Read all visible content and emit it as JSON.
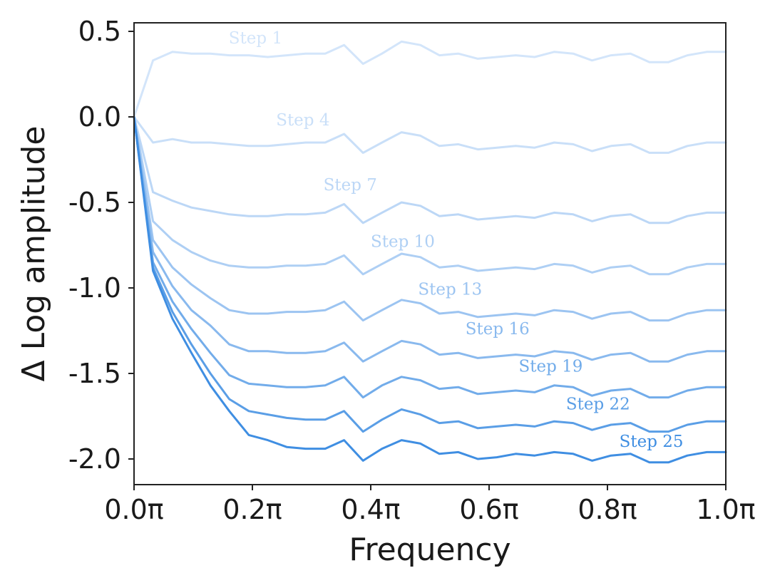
{
  "chart_data": {
    "type": "line",
    "title": "",
    "xlabel": "Frequency",
    "ylabel": "Δ Log amplitude",
    "xlim": [
      0.0,
      1.0
    ],
    "ylim": [
      -2.15,
      0.55
    ],
    "xticks": [
      0.0,
      0.2,
      0.4,
      0.6,
      0.8,
      1.0
    ],
    "xtick_labels": [
      "0.0π",
      "0.2π",
      "0.4π",
      "0.6π",
      "0.8π",
      "1.0π"
    ],
    "yticks": [
      0.5,
      0.0,
      -0.5,
      -1.0,
      -1.5,
      -2.0
    ],
    "ytick_labels": [
      "0.5",
      "0.0",
      "-0.5",
      "-1.0",
      "-1.5",
      "-2.0"
    ],
    "grid": false,
    "x": [
      0.0,
      0.032,
      0.065,
      0.097,
      0.129,
      0.161,
      0.194,
      0.226,
      0.258,
      0.29,
      0.323,
      0.355,
      0.387,
      0.419,
      0.452,
      0.484,
      0.516,
      0.548,
      0.581,
      0.613,
      0.645,
      0.677,
      0.71,
      0.742,
      0.774,
      0.806,
      0.839,
      0.871,
      0.903,
      0.935,
      0.968,
      1.0
    ],
    "series": [
      {
        "name": "Step 1",
        "color": "#d3e5fa",
        "label_pos": [
          0.16,
          0.43
        ],
        "values": [
          0.0,
          0.33,
          0.38,
          0.37,
          0.37,
          0.36,
          0.36,
          0.35,
          0.36,
          0.37,
          0.37,
          0.42,
          0.31,
          0.37,
          0.44,
          0.42,
          0.36,
          0.37,
          0.34,
          0.35,
          0.36,
          0.35,
          0.38,
          0.37,
          0.33,
          0.36,
          0.37,
          0.32,
          0.32,
          0.36,
          0.38,
          0.38
        ]
      },
      {
        "name": "Step 4",
        "color": "#c9dff8",
        "label_pos": [
          0.24,
          -0.05
        ],
        "values": [
          0.0,
          -0.15,
          -0.13,
          -0.15,
          -0.15,
          -0.16,
          -0.17,
          -0.17,
          -0.16,
          -0.15,
          -0.15,
          -0.1,
          -0.21,
          -0.15,
          -0.09,
          -0.11,
          -0.17,
          -0.16,
          -0.19,
          -0.18,
          -0.17,
          -0.18,
          -0.15,
          -0.16,
          -0.2,
          -0.17,
          -0.16,
          -0.21,
          -0.21,
          -0.17,
          -0.15,
          -0.15
        ]
      },
      {
        "name": "Step 7",
        "color": "#bcd7f6",
        "label_pos": [
          0.32,
          -0.43
        ],
        "values": [
          0.0,
          -0.44,
          -0.49,
          -0.53,
          -0.55,
          -0.57,
          -0.58,
          -0.58,
          -0.57,
          -0.57,
          -0.56,
          -0.51,
          -0.62,
          -0.56,
          -0.5,
          -0.52,
          -0.58,
          -0.57,
          -0.6,
          -0.59,
          -0.58,
          -0.59,
          -0.56,
          -0.57,
          -0.61,
          -0.58,
          -0.57,
          -0.62,
          -0.62,
          -0.58,
          -0.56,
          -0.56
        ]
      },
      {
        "name": "Step 10",
        "color": "#aecff4",
        "label_pos": [
          0.4,
          -0.76
        ],
        "values": [
          0.0,
          -0.61,
          -0.72,
          -0.79,
          -0.84,
          -0.87,
          -0.88,
          -0.88,
          -0.87,
          -0.87,
          -0.86,
          -0.81,
          -0.92,
          -0.86,
          -0.8,
          -0.82,
          -0.88,
          -0.87,
          -0.9,
          -0.89,
          -0.88,
          -0.89,
          -0.86,
          -0.87,
          -0.91,
          -0.88,
          -0.87,
          -0.92,
          -0.92,
          -0.88,
          -0.86,
          -0.86
        ]
      },
      {
        "name": "Step 13",
        "color": "#9cc4f1",
        "label_pos": [
          0.48,
          -1.04
        ],
        "values": [
          0.0,
          -0.72,
          -0.88,
          -0.98,
          -1.06,
          -1.13,
          -1.15,
          -1.15,
          -1.14,
          -1.14,
          -1.13,
          -1.08,
          -1.19,
          -1.13,
          -1.07,
          -1.09,
          -1.15,
          -1.14,
          -1.17,
          -1.16,
          -1.15,
          -1.16,
          -1.13,
          -1.14,
          -1.18,
          -1.15,
          -1.14,
          -1.19,
          -1.19,
          -1.15,
          -1.13,
          -1.13
        ]
      },
      {
        "name": "Step 16",
        "color": "#89b9ee",
        "label_pos": [
          0.56,
          -1.27
        ],
        "values": [
          0.0,
          -0.79,
          -0.99,
          -1.13,
          -1.22,
          -1.33,
          -1.37,
          -1.37,
          -1.38,
          -1.38,
          -1.37,
          -1.32,
          -1.43,
          -1.37,
          -1.31,
          -1.33,
          -1.39,
          -1.38,
          -1.41,
          -1.4,
          -1.39,
          -1.4,
          -1.37,
          -1.38,
          -1.42,
          -1.39,
          -1.38,
          -1.43,
          -1.43,
          -1.39,
          -1.37,
          -1.37
        ]
      },
      {
        "name": "Step 19",
        "color": "#72acea",
        "label_pos": [
          0.65,
          -1.49
        ],
        "values": [
          0.0,
          -0.85,
          -1.08,
          -1.24,
          -1.38,
          -1.51,
          -1.56,
          -1.57,
          -1.58,
          -1.58,
          -1.57,
          -1.52,
          -1.64,
          -1.57,
          -1.52,
          -1.54,
          -1.59,
          -1.58,
          -1.62,
          -1.61,
          -1.6,
          -1.61,
          -1.57,
          -1.58,
          -1.63,
          -1.6,
          -1.59,
          -1.64,
          -1.64,
          -1.6,
          -1.58,
          -1.58
        ]
      },
      {
        "name": "Step 22",
        "color": "#5a9ee6",
        "label_pos": [
          0.73,
          -1.71
        ],
        "values": [
          0.0,
          -0.88,
          -1.14,
          -1.33,
          -1.5,
          -1.65,
          -1.72,
          -1.74,
          -1.76,
          -1.77,
          -1.77,
          -1.72,
          -1.84,
          -1.77,
          -1.71,
          -1.74,
          -1.79,
          -1.78,
          -1.82,
          -1.81,
          -1.8,
          -1.81,
          -1.78,
          -1.79,
          -1.83,
          -1.8,
          -1.79,
          -1.84,
          -1.84,
          -1.8,
          -1.78,
          -1.78
        ]
      },
      {
        "name": "Step 25",
        "color": "#3f8ee2",
        "label_pos": [
          0.82,
          -1.93
        ],
        "values": [
          0.0,
          -0.9,
          -1.18,
          -1.38,
          -1.57,
          -1.72,
          -1.86,
          -1.89,
          -1.93,
          -1.94,
          -1.94,
          -1.89,
          -2.01,
          -1.94,
          -1.89,
          -1.91,
          -1.97,
          -1.96,
          -2.0,
          -1.99,
          -1.97,
          -1.98,
          -1.96,
          -1.97,
          -2.01,
          -1.98,
          -1.97,
          -2.02,
          -2.02,
          -1.98,
          -1.96,
          -1.96
        ]
      }
    ]
  }
}
